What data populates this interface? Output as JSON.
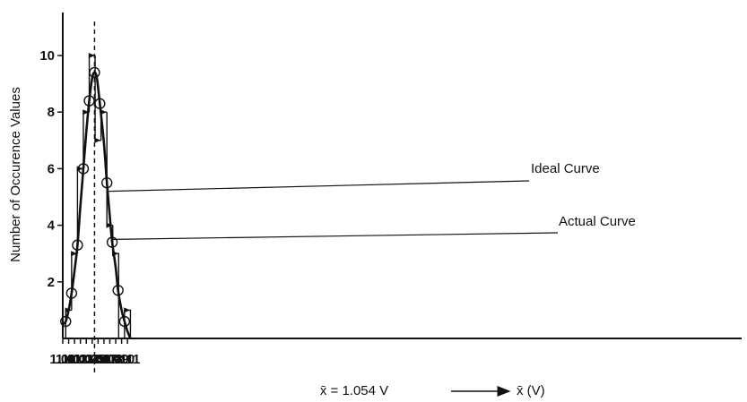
{
  "chart_data": {
    "type": "line",
    "title": "",
    "xlabel": "x̄ (V)",
    "ylabel": "Number of Occurence Values",
    "xlim": [
      1.0,
      1.12
    ],
    "ylim": [
      0,
      11
    ],
    "x_ticks": [
      "1.00",
      "1.01",
      "1.02",
      "1.03",
      "1.04",
      "1.05",
      "1.06",
      "1.07",
      "1.08",
      "1.09",
      "1.10",
      "1.11"
    ],
    "y_ticks": [
      "2",
      "4",
      "6",
      "8",
      "10"
    ],
    "mean_label": "x̄ = 1.054 V",
    "mean_value": 1.054,
    "grid": false,
    "series": [
      {
        "name": "Actual Curve",
        "style": "step",
        "bins": [
          {
            "x0": 1.005,
            "x1": 1.015,
            "y": 1
          },
          {
            "x0": 1.015,
            "x1": 1.025,
            "y": 3
          },
          {
            "x0": 1.025,
            "x1": 1.035,
            "y": 6
          },
          {
            "x0": 1.035,
            "x1": 1.045,
            "y": 8
          },
          {
            "x0": 1.045,
            "x1": 1.055,
            "y": 10
          },
          {
            "x0": 1.055,
            "x1": 1.065,
            "y": 7
          },
          {
            "x0": 1.065,
            "x1": 1.075,
            "y": 8
          },
          {
            "x0": 1.075,
            "x1": 1.085,
            "y": 4
          },
          {
            "x0": 1.085,
            "x1": 1.095,
            "y": 3
          },
          {
            "x0": 1.105,
            "x1": 1.115,
            "y": 1
          }
        ]
      },
      {
        "name": "Ideal Curve",
        "style": "smooth",
        "points": [
          {
            "x": 1.0,
            "y": 0.5
          },
          {
            "x": 1.005,
            "y": 0.6
          },
          {
            "x": 1.01,
            "y": 1.0
          },
          {
            "x": 1.015,
            "y": 1.6
          },
          {
            "x": 1.02,
            "y": 2.4
          },
          {
            "x": 1.025,
            "y": 3.3
          },
          {
            "x": 1.03,
            "y": 4.7
          },
          {
            "x": 1.035,
            "y": 6.0
          },
          {
            "x": 1.04,
            "y": 7.3
          },
          {
            "x": 1.045,
            "y": 8.4
          },
          {
            "x": 1.05,
            "y": 9.2
          },
          {
            "x": 1.054,
            "y": 9.4
          },
          {
            "x": 1.058,
            "y": 9.2
          },
          {
            "x": 1.063,
            "y": 8.3
          },
          {
            "x": 1.07,
            "y": 6.9
          },
          {
            "x": 1.075,
            "y": 5.5
          },
          {
            "x": 1.08,
            "y": 4.3
          },
          {
            "x": 1.084,
            "y": 3.4
          },
          {
            "x": 1.09,
            "y": 2.5
          },
          {
            "x": 1.094,
            "y": 1.7
          },
          {
            "x": 1.1,
            "y": 1.0
          },
          {
            "x": 1.105,
            "y": 0.6
          },
          {
            "x": 1.11,
            "y": 0.25
          },
          {
            "x": 1.115,
            "y": 0.0
          }
        ],
        "markers": [
          {
            "x": 1.005,
            "y": 0.6
          },
          {
            "x": 1.015,
            "y": 1.6
          },
          {
            "x": 1.025,
            "y": 3.3
          },
          {
            "x": 1.035,
            "y": 6.0
          },
          {
            "x": 1.045,
            "y": 8.4
          },
          {
            "x": 1.054,
            "y": 9.4
          },
          {
            "x": 1.063,
            "y": 8.3
          },
          {
            "x": 1.075,
            "y": 5.5
          },
          {
            "x": 1.084,
            "y": 3.4
          },
          {
            "x": 1.094,
            "y": 1.7
          },
          {
            "x": 1.105,
            "y": 0.6
          }
        ]
      }
    ],
    "annotations": [
      {
        "text": "Ideal Curve",
        "points_to": {
          "x": 1.076,
          "y": 5.2
        }
      },
      {
        "text": "Actual Curve",
        "points_to": {
          "x": 1.083,
          "y": 3.5
        }
      }
    ]
  }
}
